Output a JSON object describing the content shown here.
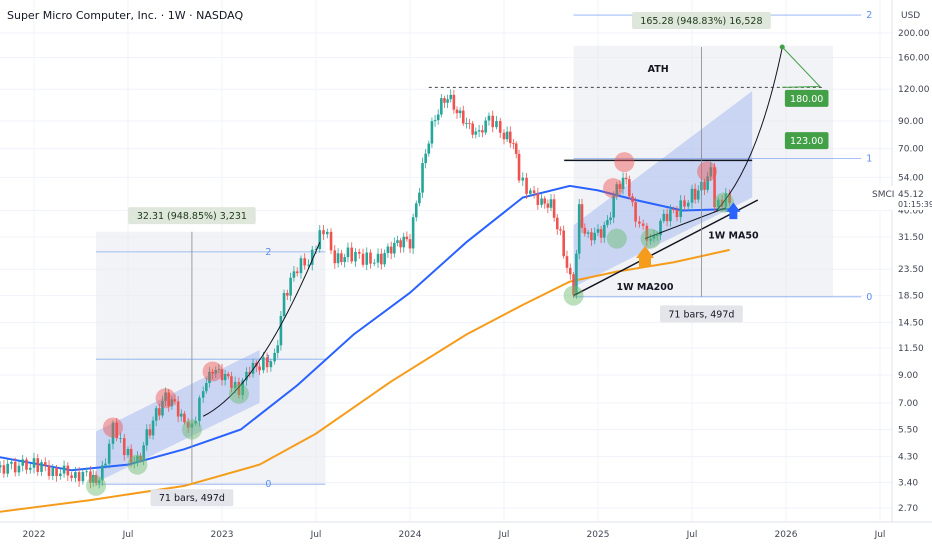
{
  "header": {
    "title": "Super Micro Computer, Inc. · 1W · NASDAQ",
    "currency": "USD"
  },
  "chart_data": {
    "type": "candlestick",
    "symbol": "SMCI",
    "interval": "1W",
    "y_scale": "log",
    "ylim": [
      2.4,
      230
    ],
    "y_ticks": [
      2.7,
      3.4,
      4.3,
      5.5,
      7.0,
      9.0,
      11.5,
      14.5,
      18.5,
      23.5,
      31.5,
      40.0,
      54.0,
      70.0,
      90.0,
      120.0,
      160.0,
      200.0
    ],
    "y_tick_labels": [
      "2.70",
      "3.40",
      "4.30",
      "5.50",
      "7.00",
      "9.00",
      "11.50",
      "14.50",
      "18.50",
      "23.50",
      "31.50",
      "40.00",
      "54.00",
      "70.00",
      "90.00",
      "120.00",
      "160.00",
      "200.00"
    ],
    "x_ticks": [
      "2022",
      "Jul",
      "2023",
      "Jul",
      "2024",
      "Jul",
      "2025",
      "Jul",
      "2026",
      "Jul"
    ],
    "last_price": {
      "symbol": "SMCI",
      "value": "45.12",
      "countdown": "01:15:39"
    },
    "price_path": [
      [
        2021.8,
        3.9
      ],
      [
        2022.0,
        4.0
      ],
      [
        2022.1,
        3.8
      ],
      [
        2022.2,
        3.7
      ],
      [
        2022.3,
        3.6
      ],
      [
        2022.33,
        3.3
      ],
      [
        2022.38,
        4.0
      ],
      [
        2022.42,
        5.6
      ],
      [
        2022.46,
        4.8
      ],
      [
        2022.5,
        4.4
      ],
      [
        2022.55,
        4.1
      ],
      [
        2022.6,
        5.2
      ],
      [
        2022.65,
        6.3
      ],
      [
        2022.7,
        7.3
      ],
      [
        2022.75,
        6.8
      ],
      [
        2022.8,
        5.7
      ],
      [
        2022.84,
        5.5
      ],
      [
        2022.9,
        7.8
      ],
      [
        2022.95,
        9.3
      ],
      [
        2023.0,
        8.9
      ],
      [
        2023.05,
        8.4
      ],
      [
        2023.09,
        7.6
      ],
      [
        2023.13,
        9.0
      ],
      [
        2023.2,
        10.0
      ],
      [
        2023.28,
        10.4
      ],
      [
        2023.33,
        18.0
      ],
      [
        2023.4,
        24.0
      ],
      [
        2023.46,
        25.5
      ],
      [
        2023.5,
        30.0
      ],
      [
        2023.54,
        34.0
      ],
      [
        2023.6,
        26.0
      ],
      [
        2023.67,
        27.0
      ],
      [
        2023.75,
        26.0
      ],
      [
        2023.83,
        25.5
      ],
      [
        2023.9,
        28.0
      ],
      [
        2023.95,
        30.0
      ],
      [
        2024.0,
        30.0
      ],
      [
        2024.05,
        50.0
      ],
      [
        2024.1,
        78.0
      ],
      [
        2024.15,
        101.0
      ],
      [
        2024.2,
        115.0
      ],
      [
        2024.25,
        100.0
      ],
      [
        2024.3,
        90.0
      ],
      [
        2024.35,
        82.0
      ],
      [
        2024.42,
        90.0
      ],
      [
        2024.5,
        80.0
      ],
      [
        2024.55,
        76.0
      ],
      [
        2024.58,
        55.0
      ],
      [
        2024.62,
        47.0
      ],
      [
        2024.7,
        44.0
      ],
      [
        2024.75,
        43.0
      ],
      [
        2024.8,
        32.0
      ],
      [
        2024.87,
        18.5
      ],
      [
        2024.9,
        40.0
      ],
      [
        2024.93,
        33.0
      ],
      [
        2025.0,
        32.0
      ],
      [
        2025.05,
        35.0
      ],
      [
        2025.1,
        49.0
      ],
      [
        2025.15,
        52.0
      ],
      [
        2025.2,
        36.0
      ],
      [
        2025.28,
        31.0
      ],
      [
        2025.35,
        37.0
      ],
      [
        2025.42,
        40.0
      ],
      [
        2025.5,
        46.0
      ],
      [
        2025.55,
        49.0
      ],
      [
        2025.6,
        56.0
      ],
      [
        2025.62,
        43.0
      ],
      [
        2025.66,
        44.0
      ],
      [
        2025.7,
        45.12
      ]
    ],
    "ma_series": [
      {
        "name": "1W MA50",
        "color": "#2962ff",
        "values": [
          [
            2021.8,
            4.3
          ],
          [
            2022.2,
            3.8
          ],
          [
            2022.5,
            4.0
          ],
          [
            2022.8,
            4.6
          ],
          [
            2023.1,
            5.5
          ],
          [
            2023.4,
            8.2
          ],
          [
            2023.7,
            13.0
          ],
          [
            2024.0,
            19.0
          ],
          [
            2024.3,
            30.0
          ],
          [
            2024.6,
            45.0
          ],
          [
            2024.85,
            50.0
          ],
          [
            2025.0,
            48.0
          ],
          [
            2025.2,
            44.0
          ],
          [
            2025.45,
            40.0
          ],
          [
            2025.7,
            40.5
          ]
        ]
      },
      {
        "name": "1W MA200",
        "color": "#f59c1a",
        "values": [
          [
            2021.8,
            2.6
          ],
          [
            2022.3,
            2.9
          ],
          [
            2022.8,
            3.3
          ],
          [
            2023.2,
            4.0
          ],
          [
            2023.5,
            5.3
          ],
          [
            2023.9,
            8.5
          ],
          [
            2024.3,
            13.0
          ],
          [
            2024.6,
            17.0
          ],
          [
            2024.85,
            21.0
          ],
          [
            2025.1,
            23.0
          ],
          [
            2025.4,
            25.0
          ],
          [
            2025.7,
            28.0
          ]
        ]
      }
    ],
    "annotations": {
      "measure_left": "32.31 (948.85%) 3,231",
      "bars_left": "71 bars, 497d",
      "measure_right": "165.28 (948.83%) 16,528",
      "bars_right": "71 bars, 497d",
      "ath": "ATH",
      "target_180": "180.00",
      "target_123": "123.00",
      "ma50_label": "1W MA50",
      "ma200_label": "1W MA200",
      "fib_left": [
        "2",
        "1",
        "0"
      ],
      "fib_right": [
        "2",
        "1",
        "0"
      ]
    }
  }
}
